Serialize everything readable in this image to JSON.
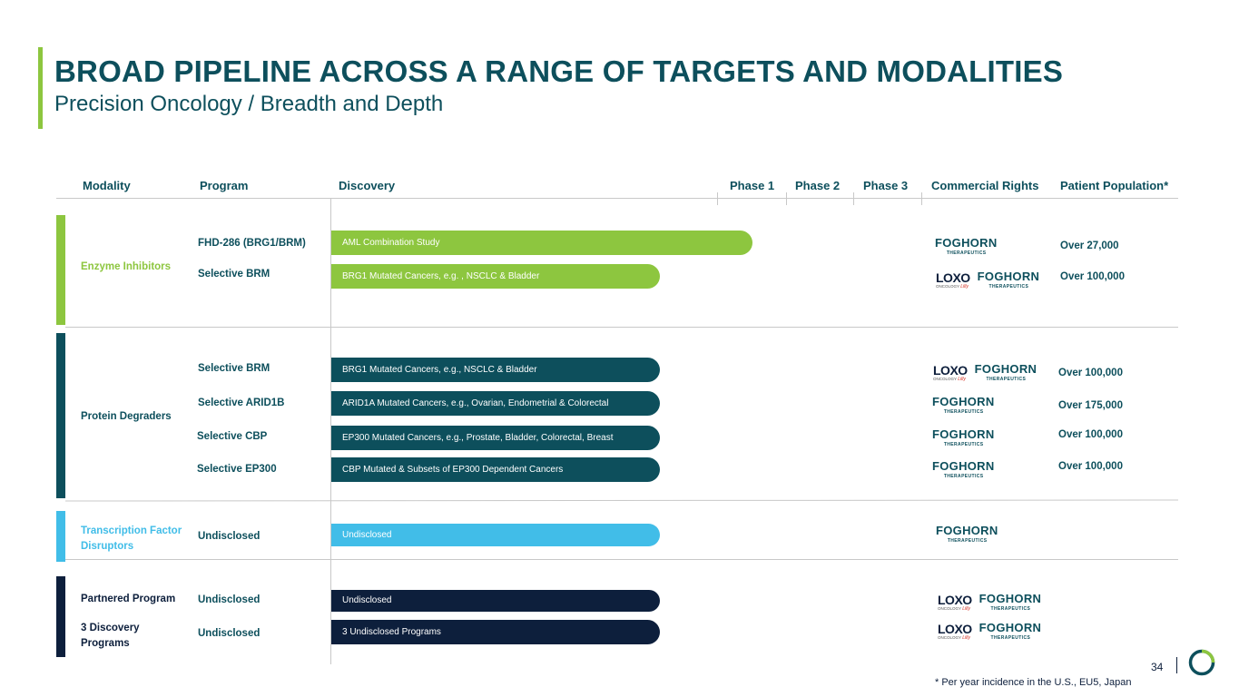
{
  "header": {
    "title": "BROAD PIPELINE ACROSS A RANGE OF TARGETS AND MODALITIES",
    "subtitle": "Precision Oncology / Breadth and Depth"
  },
  "columns": {
    "modality": "Modality",
    "program": "Program",
    "discovery": "Discovery",
    "phase1": "Phase 1",
    "phase2": "Phase 2",
    "phase3": "Phase 3",
    "commercial": "Commercial Rights",
    "population": "Patient Population*"
  },
  "categories": {
    "enzyme": "Enzyme Inhibitors",
    "degraders": "Protein Degraders",
    "tfd_line1": "Transcription Factor",
    "tfd_line2": "Disruptors",
    "partnered": "Partnered Program",
    "discovery_line1": "3 Discovery",
    "discovery_line2": "Programs"
  },
  "rows": [
    {
      "program": "FHD-286 (BRG1/BRM)",
      "bar": "AML Combination Study",
      "population": "Over 27,000"
    },
    {
      "program": "Selective BRM",
      "bar": "BRG1 Mutated Cancers, e.g. , NSCLC & Bladder",
      "population": "Over 100,000"
    },
    {
      "program": "Selective BRM",
      "bar": "BRG1 Mutated Cancers, e.g., NSCLC & Bladder",
      "population": "Over 100,000"
    },
    {
      "program": "Selective ARID1B",
      "bar": "ARID1A Mutated Cancers, e.g., Ovarian, Endometrial & Colorectal",
      "population": "Over 175,000"
    },
    {
      "program": "Selective CBP",
      "bar": "EP300 Mutated Cancers, e.g., Prostate, Bladder, Colorectal, Breast",
      "population": "Over 100,000"
    },
    {
      "program": "Selective EP300",
      "bar": "CBP Mutated & Subsets of EP300 Dependent Cancers",
      "population": "Over 100,000"
    },
    {
      "program": "Undisclosed",
      "bar": "Undisclosed",
      "population": ""
    },
    {
      "program": "Undisclosed",
      "bar": "Undisclosed",
      "population": ""
    },
    {
      "program": "Undisclosed",
      "bar": "3 Undisclosed Programs",
      "population": ""
    }
  ],
  "logos": {
    "foghorn": "FOGHORN",
    "foghorn_sub": "THERAPEUTICS",
    "loxo": "LOXO",
    "loxo_sub": "ONCOLOGY",
    "lilly": "Lilly"
  },
  "colors": {
    "enzyme": "#8dc63f",
    "degraders": "#0d4f5c",
    "tfd": "#41bde8",
    "partnered": "#0d1f3c",
    "title": "#0d4f5c"
  },
  "footer": {
    "footnote": "* Per year incidence in the U.S., EU5, Japan",
    "page": "34"
  }
}
